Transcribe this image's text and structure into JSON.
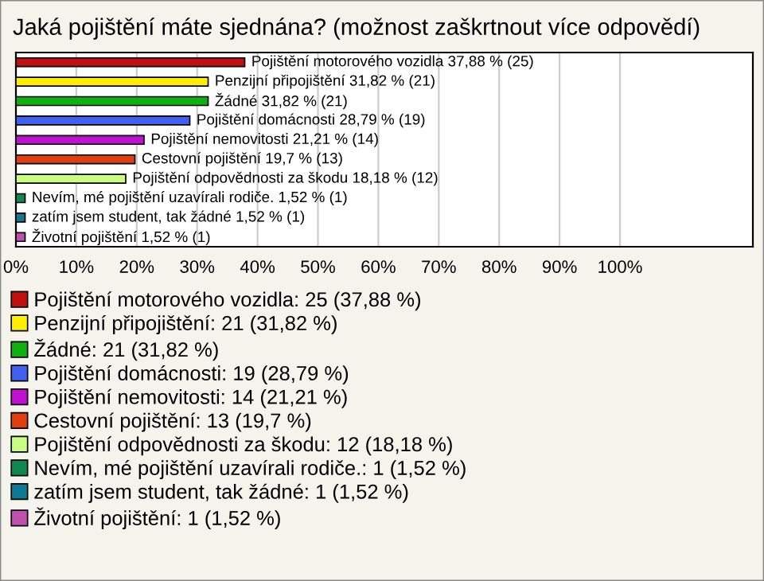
{
  "chart_data": {
    "type": "bar",
    "orientation": "horizontal",
    "title": "Jaká pojištění máte sjednána? (možnost zaškrtnout více odpovědí)",
    "categories": [
      null,
      null,
      null,
      null,
      null,
      null,
      null,
      null,
      null,
      null
    ],
    "series": [
      {
        "name": "Pojištění motorového vozidla: 25 (37,88 %)",
        "color": "#c01010",
        "values": [
          37.88,
          null,
          null,
          null,
          null,
          null,
          null,
          null,
          null,
          null
        ],
        "value_labels": [
          "Pojištění motorového vozidla 37,88 % (25)",
          null,
          null,
          null,
          null,
          null,
          null,
          null,
          null,
          null
        ]
      },
      {
        "name": "Penzijní připojištění: 21 (31,82 %)",
        "color": "#ffee00",
        "values": [
          null,
          31.82,
          null,
          null,
          null,
          null,
          null,
          null,
          null,
          null
        ],
        "value_labels": [
          null,
          "Penzijní připojištění 31,82 % (21)",
          null,
          null,
          null,
          null,
          null,
          null,
          null,
          null
        ]
      },
      {
        "name": "Žádné: 21 (31,82 %)",
        "color": "#10b010",
        "values": [
          null,
          null,
          31.82,
          null,
          null,
          null,
          null,
          null,
          null,
          null
        ],
        "value_labels": [
          null,
          null,
          "Žádné 31,82 % (21)",
          null,
          null,
          null,
          null,
          null,
          null,
          null
        ]
      },
      {
        "name": "Pojištění domácnosti: 19 (28,79 %)",
        "color": "#4060f0",
        "values": [
          null,
          null,
          null,
          28.79,
          null,
          null,
          null,
          null,
          null,
          null
        ],
        "value_labels": [
          null,
          null,
          null,
          "Pojištění domácnosti 28,79 % (19)",
          null,
          null,
          null,
          null,
          null,
          null
        ]
      },
      {
        "name": "Pojištění nemovitosti: 14 (21,21 %)",
        "color": "#c010d0",
        "values": [
          null,
          null,
          null,
          null,
          21.21,
          null,
          null,
          null,
          null,
          null
        ],
        "value_labels": [
          null,
          null,
          null,
          null,
          "Pojištění nemovitosti 21,21 % (14)",
          null,
          null,
          null,
          null,
          null
        ]
      },
      {
        "name": "Cestovní pojištění: 13 (19,7 %)",
        "color": "#e04010",
        "values": [
          null,
          null,
          null,
          null,
          null,
          19.7,
          null,
          null,
          null,
          null
        ],
        "value_labels": [
          null,
          null,
          null,
          null,
          null,
          "Cestovní pojištění 19,7 % (13)",
          null,
          null,
          null,
          null
        ]
      },
      {
        "name": "Pojištění odpovědnosti za škodu: 12 (18,18 %)",
        "color": "#c8ff80",
        "values": [
          null,
          null,
          null,
          null,
          null,
          null,
          18.18,
          null,
          null,
          null
        ],
        "value_labels": [
          null,
          null,
          null,
          null,
          null,
          null,
          "Pojištění odpovědnosti za škodu 18,18 % (12)",
          null,
          null,
          null
        ]
      },
      {
        "name": "Nevím, mé pojištění uzavírali rodiče.: 1 (1,52 %)",
        "color": "#108850",
        "values": [
          null,
          null,
          null,
          null,
          null,
          null,
          null,
          1.52,
          null,
          null
        ],
        "value_labels": [
          null,
          null,
          null,
          null,
          null,
          null,
          null,
          "Nevím, mé pojištění uzavírali rodiče. 1,52 % (1)",
          null,
          null
        ]
      },
      {
        "name": "zatím jsem student, tak žádné: 1 (1,52 %)",
        "color": "#107890",
        "values": [
          null,
          null,
          null,
          null,
          null,
          null,
          null,
          null,
          1.52,
          null
        ],
        "value_labels": [
          null,
          null,
          null,
          null,
          null,
          null,
          null,
          null,
          "zatím jsem student, tak žádné 1,52 % (1)",
          null
        ]
      },
      {
        "name": "Životní pojištění: 1 (1,52 %)",
        "color": "#c050b0",
        "values": [
          null,
          null,
          null,
          null,
          null,
          null,
          null,
          null,
          null,
          1.52
        ],
        "value_labels": [
          null,
          null,
          null,
          null,
          null,
          null,
          null,
          null,
          null,
          "Životní pojištění 1,52 % (1)"
        ]
      }
    ],
    "xlim": [
      0,
      122
    ],
    "xticks": [
      {
        "value": 0,
        "label": "0%"
      },
      {
        "value": 10,
        "label": "10%"
      },
      {
        "value": 20,
        "label": "20%"
      },
      {
        "value": 30,
        "label": "30%"
      },
      {
        "value": 40,
        "label": "40%"
      },
      {
        "value": 50,
        "label": "50%"
      },
      {
        "value": 60,
        "label": "60%"
      },
      {
        "value": 70,
        "label": "70%"
      },
      {
        "value": 80,
        "label": "80%"
      },
      {
        "value": 90,
        "label": "90%"
      },
      {
        "value": 100,
        "label": "100%"
      }
    ],
    "grid": "x",
    "legend": "bottom"
  }
}
